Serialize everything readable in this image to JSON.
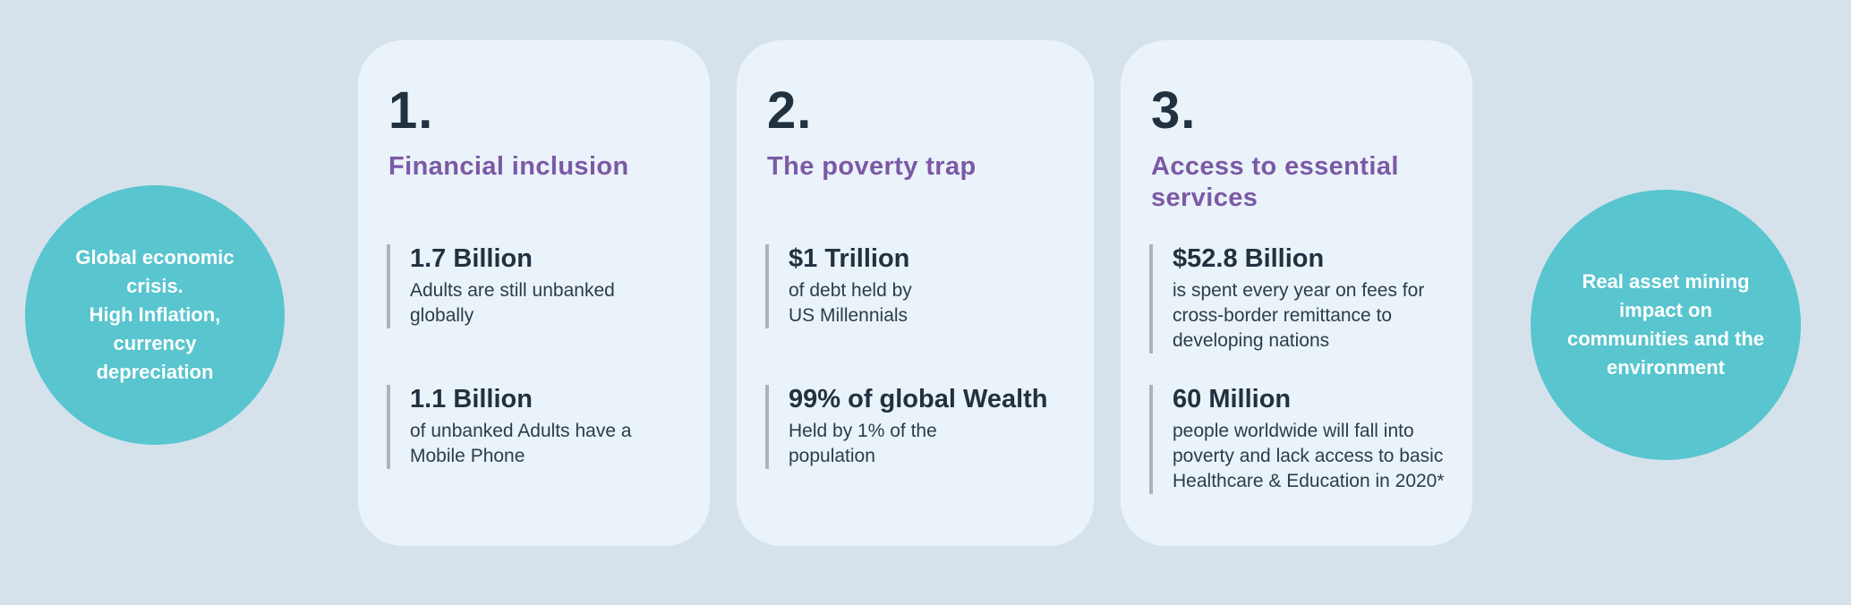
{
  "colors": {
    "background": "#d5e2ec",
    "card_background": "#e9f3f9",
    "bubble_teal": "#58c5cf",
    "heading_purple": "#7c59a6",
    "text_dark": "#22313f",
    "accent_bar_gray": "#a9b4bb"
  },
  "left_circle": {
    "text": "Global economic\ncrisis.\nHigh Inflation,\ncurrency\ndepreciation"
  },
  "right_circle": {
    "text": "Real asset  mining\nimpact on\ncommunities and the\nenvironment"
  },
  "cards": [
    {
      "number": "1.",
      "title": "Financial inclusion",
      "stats": [
        {
          "value": "1.7 Billion",
          "description": "Adults are still unbanked\nglobally"
        },
        {
          "value": "1.1 Billion",
          "description": "of unbanked Adults have a\nMobile Phone"
        }
      ]
    },
    {
      "number": "2.",
      "title": "The poverty trap",
      "stats": [
        {
          "value": "$1 Trillion",
          "description": "of debt held by\nUS Millennials"
        },
        {
          "value": "99% of global Wealth",
          "description": "Held by 1% of the\npopulation"
        }
      ]
    },
    {
      "number": "3.",
      "title": "Access to essential\nservices",
      "stats": [
        {
          "value": "$52.8 Billion",
          "description": "is spent every year on fees for\ncross-border remittance to\ndeveloping nations"
        },
        {
          "value": "60 Million",
          "description": "people worldwide will fall into\npoverty and lack access to basic\nHealthcare & Education in 2020*"
        }
      ]
    }
  ]
}
